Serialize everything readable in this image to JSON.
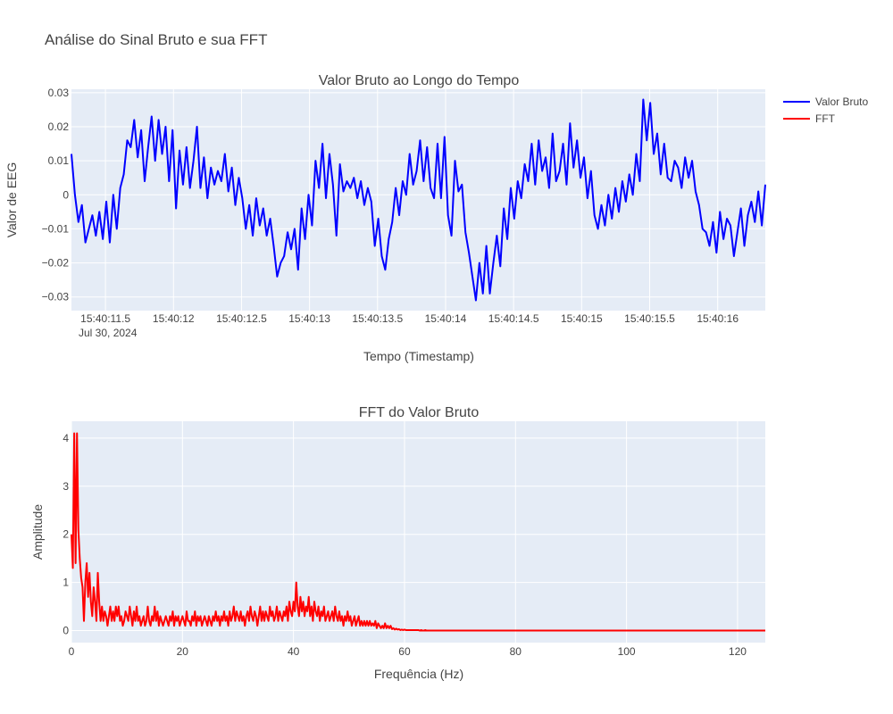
{
  "title": "Análise do Sinal Bruto e sua FFT",
  "legend": [
    {
      "name": "Valor Bruto",
      "color": "#0000ff"
    },
    {
      "name": "FFT",
      "color": "#ff0000"
    }
  ],
  "chart_data": [
    {
      "type": "line",
      "title": "Valor Bruto ao Longo do Tempo",
      "xlabel": "Tempo (Timestamp)",
      "ylabel": "Valor de EEG",
      "x_start": "2024-07-30 15:40:11.25",
      "x_end": "2024-07-30 15:40:16.35",
      "x_ticks": [
        "15:40:11.5",
        "15:40:12",
        "15:40:12.5",
        "15:40:13",
        "15:40:13.5",
        "15:40:14",
        "15:40:14.5",
        "15:40:15",
        "15:40:15.5",
        "15:40:16"
      ],
      "x_tick_times": [
        "2024-07-30 15:40:11.5",
        "2024-07-30 15:40:12",
        "2024-07-30 15:40:12.5",
        "2024-07-30 15:40:13",
        "2024-07-30 15:40:13.5",
        "2024-07-30 15:40:14",
        "2024-07-30 15:40:14.5",
        "2024-07-30 15:40:15",
        "2024-07-30 15:40:15.5",
        "2024-07-30 15:40:16"
      ],
      "x_date_label": "Jul 30, 2024",
      "y_ticks": [
        -0.03,
        -0.02,
        -0.01,
        0,
        0.01,
        0.02,
        0.03
      ],
      "y_tick_labels": [
        "−0.03",
        "−0.02",
        "−0.01",
        "0",
        "0.01",
        "0.02",
        "0.03"
      ],
      "ylim": [
        -0.034,
        0.031
      ],
      "grid": true,
      "series": [
        {
          "name": "Valor Bruto",
          "color": "#0000ff",
          "values": [
            0.012,
            0.0,
            -0.008,
            -0.003,
            -0.014,
            -0.01,
            -0.006,
            -0.012,
            -0.005,
            -0.013,
            -0.002,
            -0.014,
            0.0,
            -0.01,
            0.002,
            0.006,
            0.016,
            0.014,
            0.022,
            0.011,
            0.019,
            0.004,
            0.014,
            0.023,
            0.01,
            0.022,
            0.012,
            0.02,
            0.004,
            0.019,
            -0.004,
            0.013,
            0.003,
            0.014,
            0.002,
            0.01,
            0.02,
            0.002,
            0.011,
            -0.001,
            0.008,
            0.003,
            0.007,
            0.004,
            0.012,
            0.001,
            0.008,
            -0.003,
            0.005,
            -0.001,
            -0.01,
            -0.003,
            -0.012,
            -0.001,
            -0.009,
            -0.004,
            -0.012,
            -0.007,
            -0.015,
            -0.024,
            -0.02,
            -0.018,
            -0.011,
            -0.016,
            -0.01,
            -0.022,
            -0.004,
            -0.013,
            0.0,
            -0.009,
            0.01,
            0.002,
            0.015,
            -0.001,
            0.012,
            0.003,
            -0.012,
            0.009,
            0.001,
            0.004,
            0.002,
            0.005,
            -0.001,
            0.004,
            -0.003,
            0.002,
            -0.002,
            -0.015,
            -0.007,
            -0.018,
            -0.022,
            -0.013,
            -0.008,
            0.002,
            -0.006,
            0.004,
            0.0,
            0.012,
            0.003,
            0.007,
            0.016,
            0.004,
            0.014,
            0.002,
            -0.001,
            0.015,
            -0.001,
            0.017,
            -0.006,
            -0.012,
            0.01,
            0.001,
            0.003,
            -0.011,
            -0.017,
            -0.024,
            -0.031,
            -0.02,
            -0.029,
            -0.015,
            -0.029,
            -0.02,
            -0.012,
            -0.021,
            -0.004,
            -0.013,
            0.002,
            -0.007,
            0.004,
            -0.001,
            0.009,
            0.004,
            0.015,
            0.003,
            0.016,
            0.007,
            0.011,
            0.002,
            0.018,
            0.004,
            0.007,
            0.015,
            0.003,
            0.021,
            0.008,
            0.016,
            0.005,
            0.011,
            -0.001,
            0.007,
            -0.006,
            -0.01,
            -0.003,
            -0.009,
            0.0,
            -0.007,
            0.002,
            -0.005,
            0.004,
            -0.002,
            0.006,
            0.0,
            0.012,
            0.004,
            0.028,
            0.016,
            0.027,
            0.012,
            0.018,
            0.006,
            0.015,
            0.005,
            0.004,
            0.01,
            0.008,
            0.002,
            0.011,
            0.005,
            0.01,
            0.001,
            -0.003,
            -0.01,
            -0.011,
            -0.015,
            -0.008,
            -0.017,
            -0.005,
            -0.013,
            -0.007,
            -0.009,
            -0.018,
            -0.011,
            -0.004,
            -0.015,
            -0.006,
            -0.002,
            -0.008,
            0.001,
            -0.009,
            0.003
          ]
        }
      ]
    },
    {
      "type": "line",
      "title": "FFT do Valor Bruto",
      "xlabel": "Frequência (Hz)",
      "ylabel": "Amplitude",
      "xlim": [
        0,
        125
      ],
      "ylim": [
        -0.25,
        4.35
      ],
      "x_ticks": [
        0,
        20,
        40,
        60,
        80,
        100,
        120
      ],
      "y_ticks": [
        0,
        1,
        2,
        3,
        4
      ],
      "grid": true,
      "series": [
        {
          "name": "FFT",
          "color": "#ff0000",
          "x_step": 0.25,
          "values": [
            2.0,
            1.3,
            4.1,
            1.4,
            4.1,
            2.1,
            1.5,
            1.1,
            0.9,
            0.2,
            1.0,
            1.4,
            0.7,
            1.2,
            0.6,
            0.3,
            0.9,
            0.6,
            0.2,
            1.2,
            0.6,
            0.2,
            0.5,
            0.2,
            0.4,
            0.3,
            0.1,
            0.3,
            0.5,
            0.2,
            0.4,
            0.2,
            0.5,
            0.3,
            0.5,
            0.2,
            0.3,
            0.1,
            0.2,
            0.4,
            0.3,
            0.2,
            0.5,
            0.3,
            0.1,
            0.4,
            0.2,
            0.5,
            0.2,
            0.3,
            0.1,
            0.2,
            0.3,
            0.1,
            0.2,
            0.5,
            0.2,
            0.1,
            0.3,
            0.2,
            0.5,
            0.2,
            0.4,
            0.1,
            0.3,
            0.2,
            0.1,
            0.2,
            0.3,
            0.2,
            0.1,
            0.3,
            0.2,
            0.4,
            0.1,
            0.3,
            0.2,
            0.3,
            0.1,
            0.2,
            0.3,
            0.2,
            0.1,
            0.4,
            0.2,
            0.2,
            0.1,
            0.3,
            0.2,
            0.4,
            0.1,
            0.3,
            0.2,
            0.3,
            0.1,
            0.2,
            0.3,
            0.2,
            0.1,
            0.3,
            0.2,
            0.1,
            0.3,
            0.2,
            0.4,
            0.2,
            0.3,
            0.1,
            0.3,
            0.2,
            0.4,
            0.2,
            0.3,
            0.1,
            0.4,
            0.2,
            0.3,
            0.5,
            0.2,
            0.4,
            0.3,
            0.2,
            0.4,
            0.2,
            0.3,
            0.1,
            0.3,
            0.4,
            0.2,
            0.5,
            0.3,
            0.2,
            0.4,
            0.3,
            0.1,
            0.3,
            0.5,
            0.2,
            0.4,
            0.2,
            0.4,
            0.3,
            0.2,
            0.5,
            0.3,
            0.4,
            0.2,
            0.3,
            0.5,
            0.2,
            0.4,
            0.3,
            0.2,
            0.4,
            0.3,
            0.5,
            0.2,
            0.6,
            0.4,
            0.3,
            0.6,
            0.4,
            1.0,
            0.5,
            0.3,
            0.7,
            0.4,
            0.6,
            0.3,
            0.5,
            0.4,
            0.7,
            0.3,
            0.5,
            0.2,
            0.6,
            0.4,
            0.3,
            0.5,
            0.2,
            0.4,
            0.3,
            0.5,
            0.2,
            0.3,
            0.4,
            0.2,
            0.3,
            0.4,
            0.2,
            0.5,
            0.3,
            0.2,
            0.4,
            0.2,
            0.3,
            0.1,
            0.3,
            0.2,
            0.4,
            0.2,
            0.3,
            0.1,
            0.2,
            0.3,
            0.1,
            0.2,
            0.3,
            0.1,
            0.2,
            0.1,
            0.2,
            0.1,
            0.2,
            0.1,
            0.2,
            0.1,
            0.15,
            0.1,
            0.2,
            0.05,
            0.15,
            0.1,
            0.05,
            0.1,
            0.05,
            0.15,
            0.05,
            0.1,
            0.05,
            0.1,
            0.03,
            0.05,
            0.02,
            0.04,
            0.02,
            0.03,
            0.01,
            0.02,
            0.01,
            0.02,
            0.01,
            0.01,
            0.01,
            0.01,
            0.01,
            0.01,
            0.01,
            0.01,
            0.01,
            0.01,
            0.0,
            0.01,
            0.0,
            0.0,
            0.01,
            0.0,
            0.0,
            0.0,
            0.0,
            0.0,
            0.0,
            0.0,
            0.0,
            0.0,
            0.0,
            0.0,
            0.0,
            0.0,
            0.0,
            0.0,
            0.0,
            0.0,
            0.0,
            0.0,
            0.0,
            0.0,
            0.0,
            0.0,
            0.0,
            0.0,
            0.0,
            0.0,
            0.0,
            0.0,
            0.0,
            0.0,
            0.0,
            0.0,
            0.0,
            0.0,
            0.0,
            0.0,
            0.0,
            0.0,
            0.0,
            0.0,
            0.0,
            0.0,
            0.0,
            0.0,
            0.0,
            0.0,
            0.0,
            0.0,
            0.0,
            0.0,
            0.0,
            0.0,
            0.0,
            0.0,
            0.0,
            0.0,
            0.0,
            0.0,
            0.0,
            0.0,
            0.0,
            0.0,
            0.0,
            0.0,
            0.0,
            0.0,
            0.0,
            0.0,
            0.0,
            0.0,
            0.0,
            0.0,
            0.0,
            0.0,
            0.0,
            0.0,
            0.0,
            0.0,
            0.0,
            0.0,
            0.0,
            0.0,
            0.0,
            0.0,
            0.0,
            0.0,
            0.0,
            0.0,
            0.0,
            0.0,
            0.0,
            0.0,
            0.0,
            0.0,
            0.0,
            0.0,
            0.0,
            0.0,
            0.0,
            0.0,
            0.0,
            0.0,
            0.0,
            0.0,
            0.0,
            0.0,
            0.0,
            0.0,
            0.0,
            0.0,
            0.0,
            0.0,
            0.0,
            0.0,
            0.0,
            0.0,
            0.0,
            0.0,
            0.0,
            0.0,
            0.0,
            0.0,
            0.0,
            0.0,
            0.0,
            0.0,
            0.0,
            0.0,
            0.0,
            0.0,
            0.0,
            0.0,
            0.0,
            0.0,
            0.0,
            0.0,
            0.0,
            0.0,
            0.0,
            0.0,
            0.0,
            0.0,
            0.0,
            0.0,
            0.0,
            0.0,
            0.0,
            0.0,
            0.0,
            0.0,
            0.0,
            0.0,
            0.0,
            0.0,
            0.0,
            0.0,
            0.0,
            0.0,
            0.0,
            0.0,
            0.0,
            0.0,
            0.0,
            0.0,
            0.0,
            0.0,
            0.0,
            0.0,
            0.0,
            0.0,
            0.0,
            0.0,
            0.0,
            0.0,
            0.0,
            0.0,
            0.0,
            0.0,
            0.0,
            0.0,
            0.0,
            0.0,
            0.0,
            0.0,
            0.0,
            0.0,
            0.0,
            0.0,
            0.0,
            0.0,
            0.0,
            0.0,
            0.0,
            0.0,
            0.0,
            0.0,
            0.0,
            0.0,
            0.0,
            0.0,
            0.0,
            0.0,
            0.0,
            0.0,
            0.0,
            0.0,
            0.0,
            0.0,
            0.0,
            0.0,
            0.0,
            0.0,
            0.0,
            0.0,
            0.0,
            0.0,
            0.0
          ]
        }
      ]
    }
  ]
}
